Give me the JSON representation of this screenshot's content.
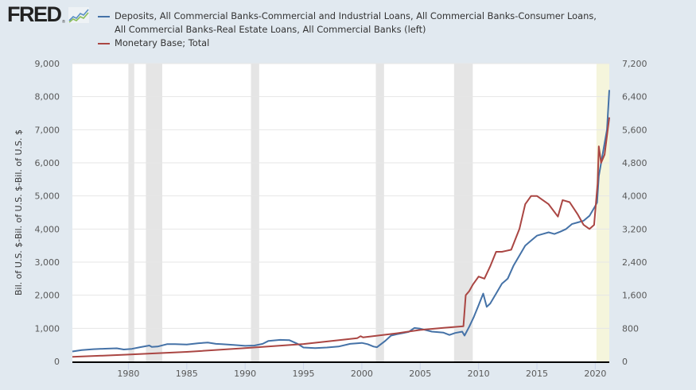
{
  "header": {
    "logo_text": "FRED",
    "logo_mark": "®",
    "logo_icon": "line-chart-icon"
  },
  "legend": [
    {
      "label": "Deposits, All Commercial Banks-Commercial and Industrial Loans, All Commercial Banks-Consumer Loans,\nAll Commercial Banks-Real Estate Loans, All Commercial Banks (left)",
      "color": "#4572a7"
    },
    {
      "label": "Monetary Base; Total",
      "color": "#aa4643"
    }
  ],
  "chart_data": {
    "type": "line",
    "title": "",
    "xlabel": "",
    "ylabel": "Bil. of U.S. $-Bil. of U.S. $-Bil. of U.S. $",
    "xlim": [
      1975.2,
      2021.2
    ],
    "x_ticks": [
      1980,
      1985,
      1990,
      1995,
      2000,
      2005,
      2010,
      2015,
      2020
    ],
    "x_tick_labels": [
      "1980",
      "1985",
      "1990",
      "1995",
      "2000",
      "2005",
      "2010",
      "2015",
      "2020"
    ],
    "y_left": {
      "ylim": [
        0,
        9000
      ],
      "ticks": [
        0,
        1000,
        2000,
        3000,
        4000,
        5000,
        6000,
        7000,
        8000,
        9000
      ],
      "tick_labels": [
        "0",
        "1,000",
        "2,000",
        "3,000",
        "4,000",
        "5,000",
        "6,000",
        "7,000",
        "8,000",
        "9,000"
      ]
    },
    "y_right": {
      "ylim": [
        0,
        7200
      ],
      "ticks": [
        0,
        800,
        1600,
        2400,
        3200,
        4000,
        4800,
        5600,
        6400,
        7200
      ],
      "tick_labels": [
        "0",
        "800",
        "1,600",
        "2,400",
        "3,200",
        "4,000",
        "4,800",
        "5,600",
        "6,400",
        "7,200"
      ]
    },
    "grid": true,
    "legend_position": "top-left",
    "recessions": [
      [
        1980.0,
        1980.5
      ],
      [
        1981.5,
        1982.9
      ],
      [
        1990.5,
        1991.2
      ],
      [
        2001.2,
        2001.9
      ],
      [
        2007.9,
        2009.5
      ]
    ],
    "highlight_region": {
      "range": [
        2020.1,
        2021.2
      ],
      "color": "#f5f5dc"
    },
    "series": [
      {
        "name": "Deposits, All Commercial Banks-Commercial and Industrial Loans, All Commercial Banks-Consumer Loans, All Commercial Banks-Real Estate Loans, All Commercial Banks (left)",
        "axis": "left",
        "color": "#4572a7",
        "x": [
          1975.2,
          1976,
          1977,
          1978,
          1979,
          1979.6,
          1980.3,
          1981,
          1981.8,
          1982,
          1982.5,
          1983.3,
          1984,
          1985,
          1986,
          1986.8,
          1987.5,
          1988,
          1989,
          1990,
          1990.8,
          1991.5,
          1992,
          1993,
          1993.8,
          1994.5,
          1995,
          1996,
          1997,
          1998,
          1999,
          2000,
          2000.5,
          2001,
          2001.3,
          2002,
          2002.5,
          2003,
          2004,
          2004.5,
          2005,
          2006,
          2007,
          2007.5,
          2008,
          2008.6,
          2008.8,
          2009.2,
          2009.6,
          2010,
          2010.4,
          2010.7,
          2011,
          2011.5,
          2012,
          2012.5,
          2013,
          2013.5,
          2014,
          2014.5,
          2015,
          2015.5,
          2016,
          2016.5,
          2017,
          2017.5,
          2018,
          2018.5,
          2019,
          2019.5,
          2020,
          2020.15,
          2020.3,
          2020.6,
          2021,
          2021.2
        ],
        "values": [
          300,
          340,
          370,
          385,
          395,
          360,
          380,
          430,
          480,
          440,
          450,
          520,
          520,
          510,
          550,
          570,
          530,
          520,
          500,
          470,
          480,
          530,
          620,
          650,
          640,
          530,
          420,
          400,
          420,
          450,
          530,
          560,
          520,
          450,
          430,
          620,
          780,
          820,
          890,
          1010,
          990,
          900,
          870,
          800,
          860,
          900,
          780,
          1050,
          1350,
          1700,
          2050,
          1650,
          1750,
          2050,
          2350,
          2500,
          2900,
          3200,
          3500,
          3650,
          3800,
          3850,
          3900,
          3850,
          3920,
          4000,
          4150,
          4200,
          4250,
          4400,
          4700,
          4800,
          5600,
          6200,
          7000,
          8200
        ]
      },
      {
        "name": "Monetary Base; Total",
        "axis": "right",
        "color": "#aa4643",
        "x": [
          1975.2,
          1980,
          1985,
          1990,
          1995,
          1999.6,
          1999.9,
          2000.1,
          2003,
          2005,
          2007,
          2008.7,
          2008.9,
          2009.2,
          2009.5,
          2010,
          2010.5,
          2011,
          2011.5,
          2012,
          2012.8,
          2013.5,
          2014,
          2014.5,
          2015,
          2015.5,
          2016,
          2016.8,
          2017.2,
          2017.8,
          2018.5,
          2019,
          2019.5,
          2019.9,
          2020.2,
          2020.3,
          2020.5,
          2020.8,
          2021.2
        ],
        "values": [
          110,
          165,
          230,
          320,
          420,
          560,
          610,
          580,
          680,
          760,
          810,
          850,
          1600,
          1700,
          1850,
          2050,
          2000,
          2300,
          2650,
          2650,
          2700,
          3200,
          3800,
          4000,
          4000,
          3900,
          3800,
          3500,
          3900,
          3850,
          3550,
          3300,
          3200,
          3300,
          4300,
          5200,
          4800,
          5000,
          5900
        ]
      }
    ]
  }
}
